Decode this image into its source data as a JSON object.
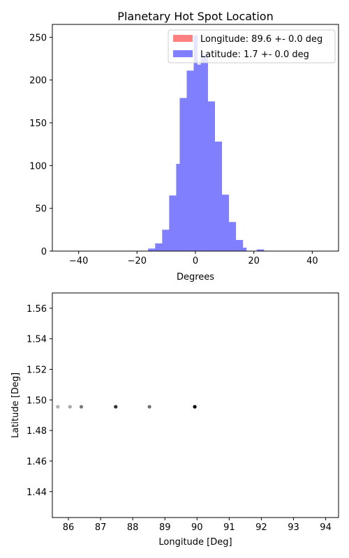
{
  "chart_data": [
    {
      "type": "bar",
      "title": "Planetary Hot Spot Location",
      "xlabel": "Degrees",
      "ylabel": "",
      "xlim": [
        -49,
        49
      ],
      "ylim": [
        0,
        265
      ],
      "xticks": [
        -40,
        -20,
        0,
        20,
        40
      ],
      "yticks": [
        0,
        50,
        100,
        150,
        200,
        250
      ],
      "legend_position": "top-right",
      "series": [
        {
          "name": "Longitude: 89.6 +- 0.0 deg",
          "color": "#ff8080",
          "bins": []
        },
        {
          "name": "Latitude: 1.7 +- 0.0 deg",
          "color": "#8080ff",
          "bin_width": 1.2,
          "bins": [
            {
              "x0": -16.2,
              "v": 3
            },
            {
              "x0": -15.0,
              "v": 3
            },
            {
              "x0": -13.8,
              "v": 9
            },
            {
              "x0": -12.6,
              "v": 9
            },
            {
              "x0": -11.4,
              "v": 25
            },
            {
              "x0": -10.2,
              "v": 25
            },
            {
              "x0": -9.0,
              "v": 65
            },
            {
              "x0": -7.8,
              "v": 65
            },
            {
              "x0": -6.6,
              "v": 102
            },
            {
              "x0": -5.4,
              "v": 179
            },
            {
              "x0": -4.2,
              "v": 179
            },
            {
              "x0": -3.0,
              "v": 211
            },
            {
              "x0": -1.8,
              "v": 211
            },
            {
              "x0": -0.6,
              "v": 252
            },
            {
              "x0": 0.6,
              "v": 218
            },
            {
              "x0": 1.8,
              "v": 229
            },
            {
              "x0": 3.0,
              "v": 229
            },
            {
              "x0": 4.2,
              "v": 175
            },
            {
              "x0": 5.4,
              "v": 175
            },
            {
              "x0": 6.6,
              "v": 128
            },
            {
              "x0": 7.8,
              "v": 128
            },
            {
              "x0": 9.0,
              "v": 66
            },
            {
              "x0": 10.2,
              "v": 66
            },
            {
              "x0": 11.4,
              "v": 34
            },
            {
              "x0": 12.6,
              "v": 34
            },
            {
              "x0": 13.8,
              "v": 13
            },
            {
              "x0": 15.0,
              "v": 13
            },
            {
              "x0": 16.2,
              "v": 4
            },
            {
              "x0": 21.0,
              "v": 2
            },
            {
              "x0": 22.2,
              "v": 2
            }
          ]
        }
      ]
    },
    {
      "type": "scatter",
      "title": "",
      "xlabel": "Longitude [Deg]",
      "ylabel": "Latitude [Deg]",
      "xlim": [
        85.5,
        94.4
      ],
      "ylim": [
        1.423,
        1.57
      ],
      "xticks": [
        86,
        87,
        88,
        89,
        90,
        91,
        92,
        93,
        94
      ],
      "yticks": [
        1.44,
        1.46,
        1.48,
        1.5,
        1.52,
        1.54,
        1.56
      ],
      "ytick_labels": [
        "1.44",
        "1.46",
        "1.48",
        "1.50",
        "1.52",
        "1.54",
        "1.56"
      ],
      "points": [
        {
          "x": 85.67,
          "y": 1.4955,
          "color": "#b0b0b0"
        },
        {
          "x": 86.05,
          "y": 1.4955,
          "color": "#a8a8a8"
        },
        {
          "x": 86.4,
          "y": 1.4955,
          "color": "#787878"
        },
        {
          "x": 87.47,
          "y": 1.4955,
          "color": "#303030"
        },
        {
          "x": 88.52,
          "y": 1.4955,
          "color": "#707070"
        },
        {
          "x": 89.93,
          "y": 1.4955,
          "color": "#000000"
        }
      ]
    }
  ]
}
